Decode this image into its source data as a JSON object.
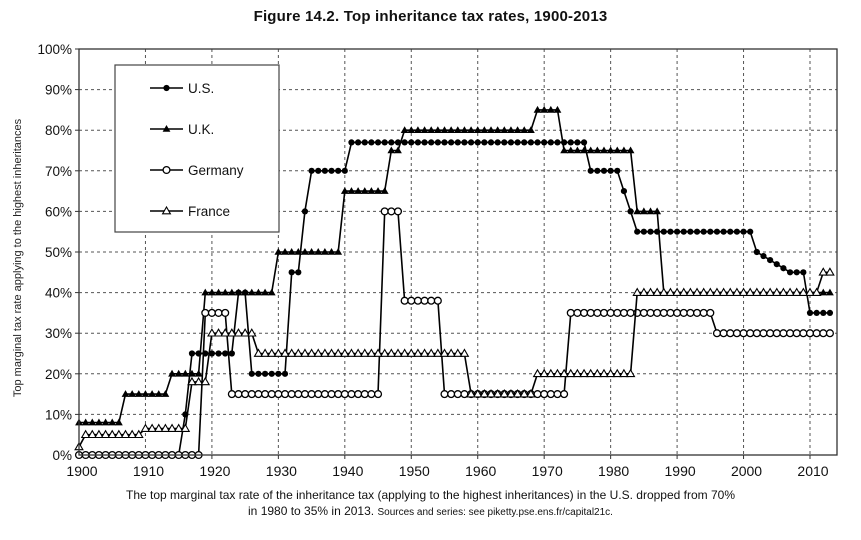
{
  "figure": {
    "title": "Figure 14.2. Top inheritance tax rates, 1900-2013",
    "y_axis_title": "Top marginal tax rate applying to the highest inheritances",
    "caption_line1": "The top marginal tax rate of the inheritance tax (applying to the highest inheritances) in the U.S. dropped from 70%",
    "caption_line2": "in 1980 to 35% in 2013.",
    "caption_source": "Sources and series: see piketty.pse.ens.fr/capital21c."
  },
  "chart_data": {
    "type": "line",
    "title": "Figure 14.2. Top inheritance tax rates, 1900-2013",
    "xlabel": "",
    "ylabel": "Top marginal tax rate applying to the highest inheritances",
    "x_range": [
      1900,
      2013
    ],
    "ylim": [
      0,
      100
    ],
    "grid": "dashed",
    "x_tick_labels": [
      "1900",
      "1910",
      "1920",
      "1930",
      "1940",
      "1950",
      "1960",
      "1970",
      "1980",
      "1990",
      "2000",
      "2010"
    ],
    "y_tick_labels": [
      "0%",
      "10%",
      "20%",
      "30%",
      "40%",
      "50%",
      "60%",
      "70%",
      "80%",
      "90%",
      "100%"
    ],
    "legend_position": "top-left",
    "series": [
      {
        "name": "U.S.",
        "marker": "filled-circle",
        "color": "#000000",
        "step_segments_year_year_value": [
          [
            1900,
            1915,
            0
          ],
          [
            1916,
            1916,
            10
          ],
          [
            1917,
            1923,
            25
          ],
          [
            1924,
            1925,
            40
          ],
          [
            1926,
            1931,
            20
          ],
          [
            1932,
            1933,
            45
          ],
          [
            1934,
            1934,
            60
          ],
          [
            1935,
            1940,
            70
          ],
          [
            1941,
            1976,
            77
          ],
          [
            1977,
            1981,
            70
          ],
          [
            1982,
            1982,
            65
          ],
          [
            1983,
            1983,
            60
          ],
          [
            1984,
            2001,
            55
          ],
          [
            2002,
            2002,
            50
          ],
          [
            2003,
            2003,
            49
          ],
          [
            2004,
            2004,
            48
          ],
          [
            2005,
            2005,
            47
          ],
          [
            2006,
            2006,
            46
          ],
          [
            2007,
            2009,
            45
          ],
          [
            2010,
            2013,
            35
          ]
        ]
      },
      {
        "name": "U.K.",
        "marker": "filled-triangle",
        "color": "#000000",
        "step_segments_year_year_value": [
          [
            1900,
            1906,
            8
          ],
          [
            1907,
            1913,
            15
          ],
          [
            1914,
            1918,
            20
          ],
          [
            1919,
            1929,
            40
          ],
          [
            1930,
            1939,
            50
          ],
          [
            1940,
            1946,
            65
          ],
          [
            1947,
            1948,
            75
          ],
          [
            1949,
            1968,
            80
          ],
          [
            1969,
            1972,
            85
          ],
          [
            1973,
            1983,
            75
          ],
          [
            1984,
            1987,
            60
          ],
          [
            1988,
            2013,
            40
          ]
        ]
      },
      {
        "name": "Germany",
        "marker": "open-circle",
        "color": "#000000",
        "step_segments_year_year_value": [
          [
            1900,
            1918,
            0
          ],
          [
            1919,
            1922,
            35
          ],
          [
            1923,
            1945,
            15
          ],
          [
            1946,
            1948,
            60
          ],
          [
            1949,
            1954,
            38
          ],
          [
            1955,
            1973,
            15
          ],
          [
            1974,
            1995,
            35
          ],
          [
            1996,
            2013,
            30
          ]
        ]
      },
      {
        "name": "France",
        "marker": "open-triangle",
        "color": "#000000",
        "step_segments_year_year_value": [
          [
            1900,
            1900,
            2
          ],
          [
            1901,
            1909,
            5
          ],
          [
            1910,
            1916,
            6.5
          ],
          [
            1917,
            1919,
            18
          ],
          [
            1920,
            1926,
            30
          ],
          [
            1927,
            1958,
            25
          ],
          [
            1959,
            1968,
            15
          ],
          [
            1969,
            1983,
            20
          ],
          [
            1984,
            2011,
            40
          ],
          [
            2012,
            2013,
            45
          ]
        ]
      }
    ]
  }
}
